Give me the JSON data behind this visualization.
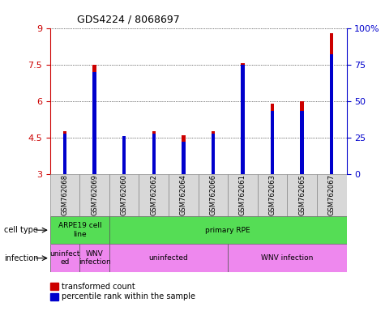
{
  "title": "GDS4224 / 8068697",
  "samples": [
    "GSM762068",
    "GSM762069",
    "GSM762060",
    "GSM762062",
    "GSM762064",
    "GSM762066",
    "GSM762061",
    "GSM762063",
    "GSM762065",
    "GSM762067"
  ],
  "transformed_counts": [
    4.75,
    7.5,
    4.5,
    4.75,
    4.6,
    4.75,
    7.55,
    5.9,
    6.0,
    8.8
  ],
  "percentile_ranks": [
    28,
    70,
    26,
    28,
    22,
    28,
    75,
    43,
    43,
    82
  ],
  "ylim": [
    3,
    9
  ],
  "yticks": [
    3,
    4.5,
    6,
    7.5,
    9
  ],
  "right_yticks": [
    0,
    25,
    50,
    75,
    100
  ],
  "bar_color": "#cc0000",
  "pct_color": "#0000cc",
  "bar_width": 0.12,
  "pct_bar_width": 0.12,
  "legend_red_label": "transformed count",
  "legend_blue_label": "percentile rank within the sample",
  "cell_type_label": "cell type",
  "infection_label": "infection",
  "cell_groups": [
    {
      "label": "ARPE19 cell\nline",
      "start": 0,
      "end": 2,
      "color": "#55dd55"
    },
    {
      "label": "primary RPE",
      "start": 2,
      "end": 10,
      "color": "#55dd55"
    }
  ],
  "inf_groups": [
    {
      "label": "uninfect\ned",
      "start": 0,
      "end": 1,
      "color": "#ee88ee"
    },
    {
      "label": "WNV\ninfection",
      "start": 1,
      "end": 2,
      "color": "#ee88ee"
    },
    {
      "label": "uninfected",
      "start": 2,
      "end": 6,
      "color": "#ee88ee"
    },
    {
      "label": "WNV infection",
      "start": 6,
      "end": 10,
      "color": "#ee88ee"
    }
  ]
}
